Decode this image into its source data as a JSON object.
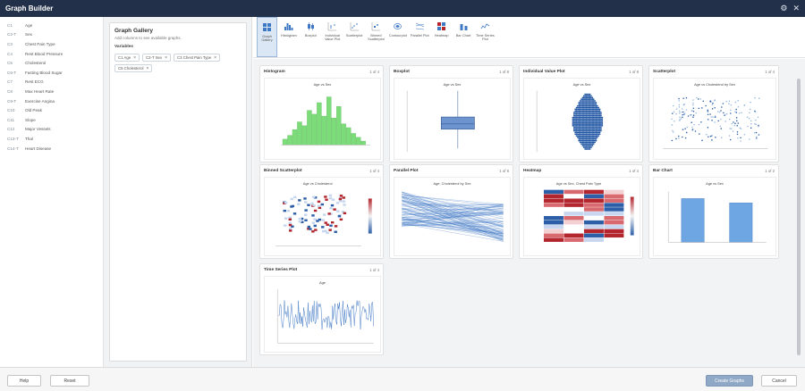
{
  "window": {
    "title": "Graph Builder"
  },
  "columns": [
    {
      "type": "C1",
      "name": "Age"
    },
    {
      "type": "C2-T",
      "name": "Sex"
    },
    {
      "type": "C3",
      "name": "Chest Pain Type"
    },
    {
      "type": "C4",
      "name": "Rest Blood Pressure"
    },
    {
      "type": "C5",
      "name": "Cholesterol"
    },
    {
      "type": "C6-T",
      "name": "Fasting Blood Sugar"
    },
    {
      "type": "C7",
      "name": "Rest ECG"
    },
    {
      "type": "C8",
      "name": "Max Heart Rate"
    },
    {
      "type": "C9-T",
      "name": "Exercise Angina"
    },
    {
      "type": "C10",
      "name": "Old Peak"
    },
    {
      "type": "C11",
      "name": "Slope"
    },
    {
      "type": "C12",
      "name": "Major Vessels"
    },
    {
      "type": "C13-T",
      "name": "Thal"
    },
    {
      "type": "C14-T",
      "name": "Heart Disease"
    }
  ],
  "gallery_panel": {
    "title": "Graph Gallery",
    "subtitle": "Add columns to see available graphs.",
    "variables_label": "Variables",
    "chips": [
      "C1 Age",
      "C2-T Sex",
      "C3 Chest Pain Type",
      "C5 Cholesterol"
    ]
  },
  "toolbar": [
    {
      "label": "Graph Gallery",
      "icon": "grid-icon",
      "selected": true
    },
    {
      "label": "Histogram",
      "icon": "histogram-icon"
    },
    {
      "label": "Boxplot",
      "icon": "boxplot-icon"
    },
    {
      "label": "Individual Value Plot",
      "icon": "ivp-icon"
    },
    {
      "label": "Scatterplot",
      "icon": "scatter-icon"
    },
    {
      "label": "Binned Scatterplot",
      "icon": "binned-scatter-icon"
    },
    {
      "label": "Contourplot",
      "icon": "contour-icon"
    },
    {
      "label": "Parallel Plot",
      "icon": "parallel-icon"
    },
    {
      "label": "Heatmap",
      "icon": "heatmap-icon"
    },
    {
      "label": "Bar Chart",
      "icon": "bar-chart-icon"
    },
    {
      "label": "Time Series Plot",
      "icon": "time-series-icon"
    }
  ],
  "cards": [
    {
      "name": "Histogram",
      "page": "1 of 4",
      "caption": "Age vs Sex"
    },
    {
      "name": "Boxplot",
      "page": "1 of 8",
      "caption": "Age vs Sex"
    },
    {
      "name": "Individual Value Plot",
      "page": "1 of 8",
      "caption": "Age vs Sex"
    },
    {
      "name": "Scatterplot",
      "page": "1 of 4",
      "caption": "Age vs Cholesterol by Sex"
    },
    {
      "name": "Binned Scatterplot",
      "page": "1 of 4",
      "caption": "Age vs Cholesterol"
    },
    {
      "name": "Parallel Plot",
      "page": "1 of 8",
      "caption": "Age, Cholesterol by Sex"
    },
    {
      "name": "Heatmap",
      "page": "1 of 4",
      "caption": "Age vs Sex, Chest Pain Type"
    },
    {
      "name": "Bar Chart",
      "page": "1 of 2",
      "caption": "Age vs Sex"
    },
    {
      "name": "Time Series Plot",
      "page": "1 of 4",
      "caption": "Age"
    }
  ],
  "footer": {
    "help": "Help",
    "reset": "Reset",
    "create": "Create Graphs",
    "cancel": "Cancel"
  },
  "colors": {
    "titlebar": "#23304a",
    "accent_blue": "#3f78c4",
    "histogram_green": "#7ddc7a",
    "heat_red": "#b3262e"
  }
}
